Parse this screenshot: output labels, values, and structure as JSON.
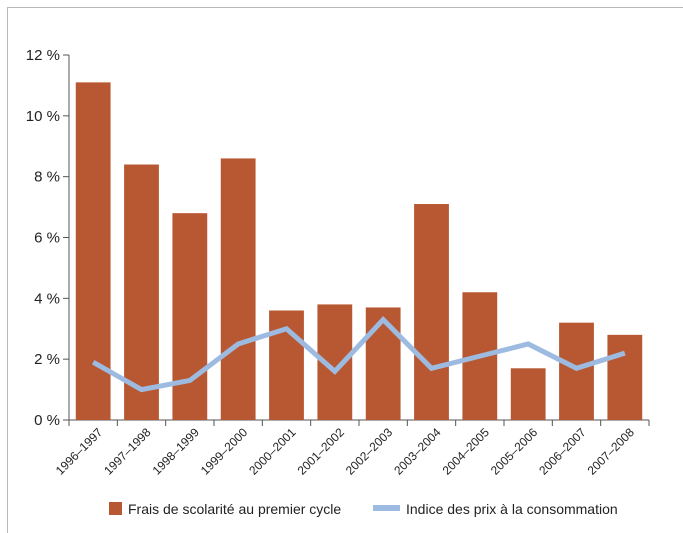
{
  "chart_data": {
    "type": "bar",
    "title": "",
    "xlabel": "",
    "ylabel": "",
    "ylim": [
      0,
      12
    ],
    "yticks": [
      "0 %",
      "2 %",
      "4 %",
      "6 %",
      "8 %",
      "10 %",
      "12 %"
    ],
    "categories": [
      "1996–1997",
      "1997–1998",
      "1998–1999",
      "1999–2000",
      "2000–2001",
      "2001–2002",
      "2002–2003",
      "2003–2004",
      "2004–2005",
      "2005–2006",
      "2006–2007",
      "2007–2008"
    ],
    "series": [
      {
        "name": "Frais de scolarité au premier cycle",
        "type": "bar",
        "color": "#b85832",
        "values": [
          11.1,
          8.4,
          6.8,
          8.6,
          3.6,
          3.8,
          3.7,
          7.1,
          4.2,
          1.7,
          3.2,
          2.8
        ]
      },
      {
        "name": "Indice des prix à la consommation",
        "type": "line",
        "color": "#9dbbe1",
        "values": [
          1.9,
          1.0,
          1.3,
          2.5,
          3.0,
          1.6,
          3.3,
          1.7,
          2.1,
          2.5,
          1.7,
          2.2
        ]
      }
    ],
    "grid": false,
    "legend": "bottom"
  }
}
